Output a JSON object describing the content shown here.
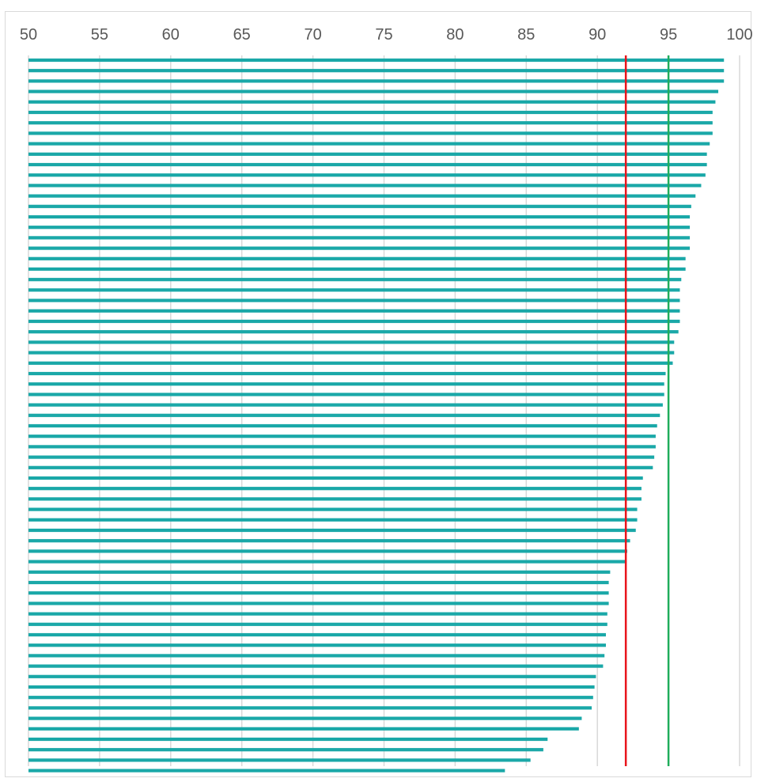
{
  "chart_data": {
    "type": "bar",
    "orientation": "horizontal",
    "title": "",
    "xlabel": "",
    "ylabel": "",
    "xlim": [
      50,
      100
    ],
    "x_ticks": [
      "50",
      "55",
      "60",
      "65",
      "70",
      "75",
      "80",
      "85",
      "90",
      "95",
      "100"
    ],
    "grid": true,
    "legend": "none",
    "bar_color": "#1AA8A8",
    "reference_lines": [
      {
        "value": 92,
        "color": "#E8141C"
      },
      {
        "value": 95,
        "color": "#1FAD5B"
      }
    ],
    "values": [
      98.9,
      98.9,
      98.9,
      98.5,
      98.3,
      98.1,
      98.1,
      98.1,
      97.9,
      97.7,
      97.7,
      97.6,
      97.3,
      96.9,
      96.6,
      96.5,
      96.5,
      96.5,
      96.5,
      96.2,
      96.2,
      95.9,
      95.8,
      95.8,
      95.8,
      95.8,
      95.7,
      95.4,
      95.4,
      95.3,
      94.8,
      94.7,
      94.7,
      94.6,
      94.4,
      94.2,
      94.1,
      94.1,
      94.0,
      93.9,
      93.2,
      93.1,
      93.1,
      92.8,
      92.8,
      92.7,
      92.3,
      92.1,
      92.0,
      90.9,
      90.8,
      90.8,
      90.8,
      90.7,
      90.7,
      90.6,
      90.6,
      90.5,
      90.4,
      89.9,
      89.8,
      89.7,
      89.6,
      88.9,
      88.7,
      86.5,
      86.2,
      85.3,
      83.5
    ]
  }
}
